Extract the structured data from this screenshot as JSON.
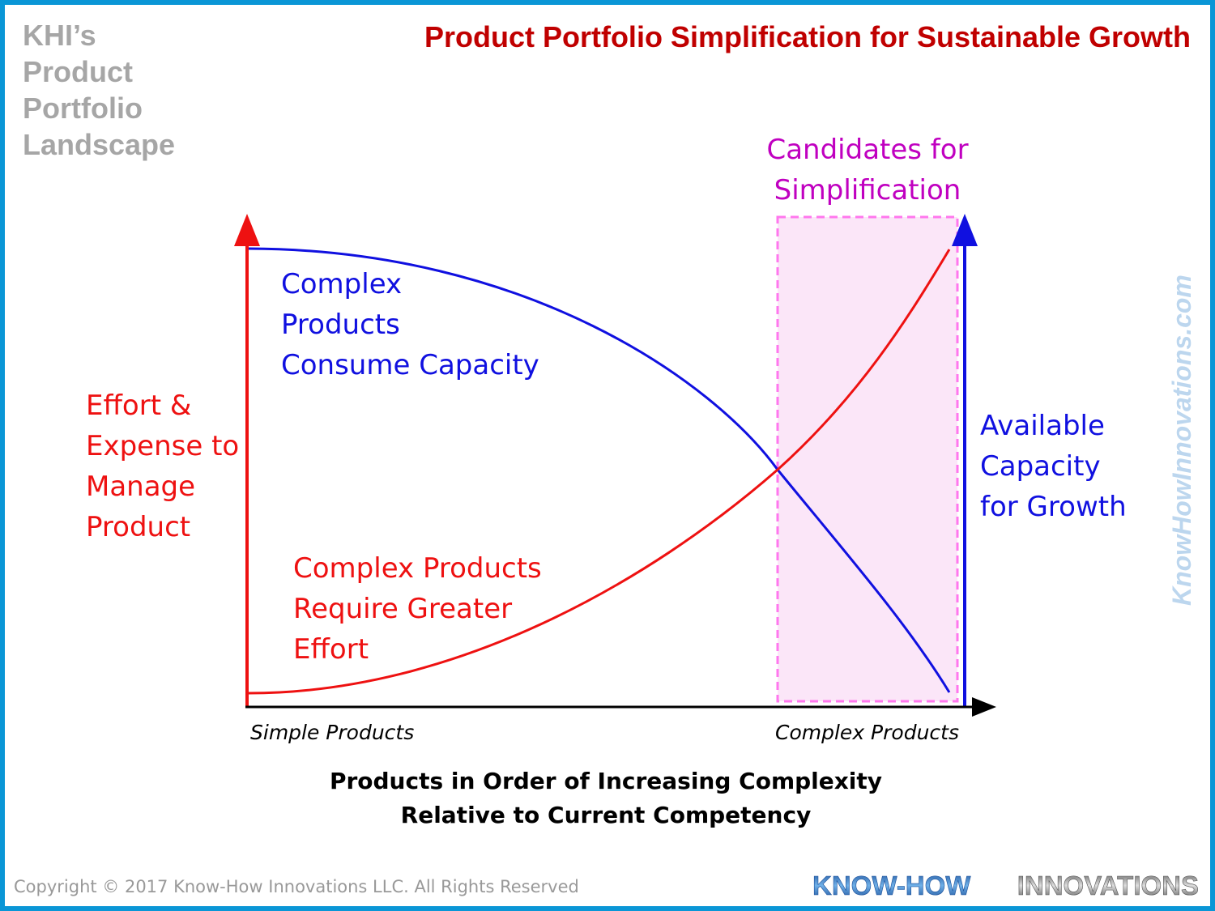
{
  "header": {
    "subtitle_lines": [
      "KHI’s",
      "Product",
      "Portfolio",
      "Landscape"
    ],
    "title": "Product Portfolio Simplification for Sustainable Growth"
  },
  "diagram": {
    "candidates_label": [
      "Candidates for",
      "Simplification"
    ],
    "blue_curve_label": [
      "Complex",
      "Products",
      "Consume Capacity"
    ],
    "red_curve_label": [
      "Complex Products",
      "Require Greater",
      "Effort"
    ],
    "left_axis_label": [
      "Effort &",
      "Expense to",
      "Manage",
      "Product"
    ],
    "right_axis_label": [
      "Available",
      "Capacity",
      "for Growth"
    ],
    "x_tick_left": "Simple Products",
    "x_tick_right": "Complex Products",
    "x_axis_title": [
      "Products in Order of Increasing Complexity",
      "Relative to Current Competency"
    ]
  },
  "watermark": "KnowHowInnovations.com",
  "footer": {
    "copyright": "Copyright © 2017 Know-How Innovations LLC. All Rights Reserved",
    "logo_part1": "KNOW-HOW",
    "logo_part2": "INNOVATIONS"
  },
  "colors": {
    "border": "#0a96d6",
    "red": "#ee1111",
    "blue": "#1010e0",
    "magenta": "#c000c0",
    "title": "#c00000",
    "gray": "#a6a6a6"
  }
}
